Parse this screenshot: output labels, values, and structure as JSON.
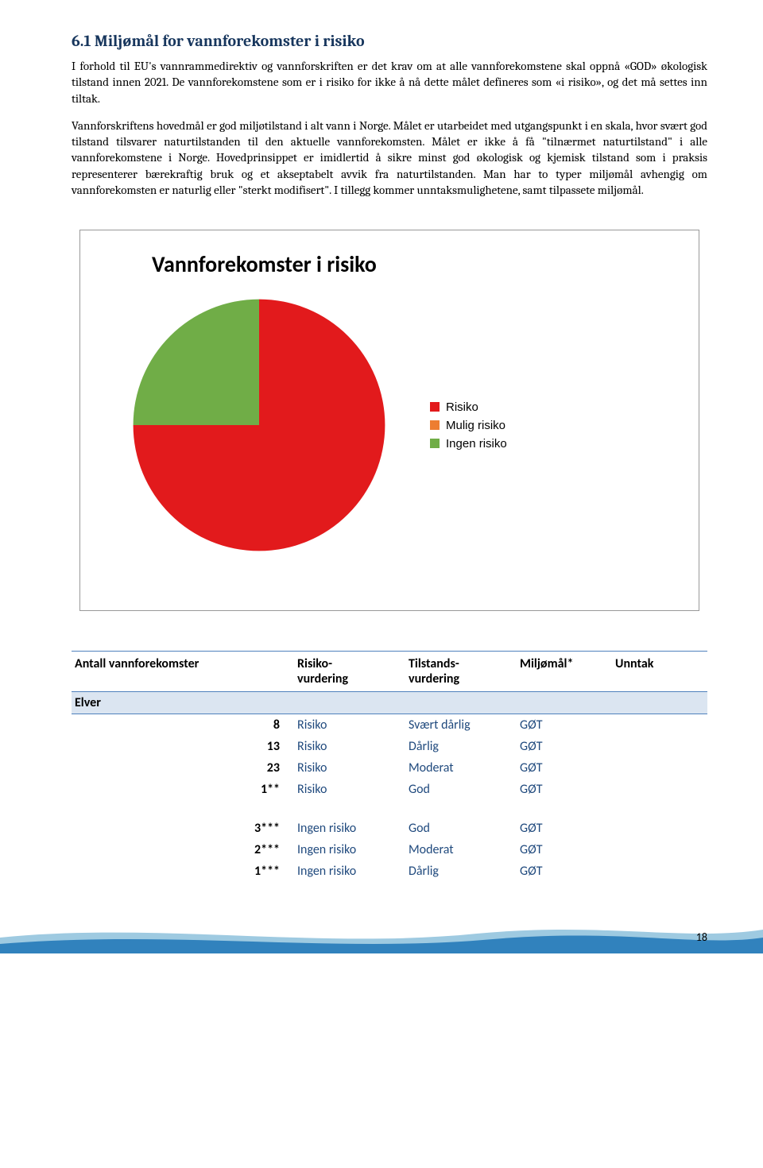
{
  "heading": "6.1  Miljømål for vannforekomster i risiko",
  "para1": "I forhold til EU's vannrammedirektiv og vannforskriften er det krav om at alle vannforekomstene skal oppnå «GOD» økologisk tilstand innen 2021. De vannforekomstene som er i risiko for ikke å nå dette målet defineres som «i risiko», og det må settes inn tiltak.",
  "para2": "Vannforskriftens hovedmål er god miljøtilstand i alt vann i Norge. Målet er utarbeidet med utgangspunkt i en skala, hvor svært god tilstand tilsvarer naturtilstanden til den aktuelle vannforekomsten. Målet er ikke å få \"tilnærmet naturtilstand\" i alle vannforekomstene i Norge. Hovedprinsippet er imidlertid å sikre minst god økologisk og kjemisk tilstand som i praksis representerer bærekraftig bruk og et akseptabelt avvik fra naturtilstanden. Man har to typer miljømål avhengig om vannforekomsten er naturlig eller \"sterkt modifisert\". I tillegg kommer unntaksmulighetene, samt tilpassete miljømål.",
  "chart": {
    "title": "Vannforekomster i risiko",
    "type": "pie",
    "slices": [
      {
        "label": "Risiko",
        "value": 75,
        "color": "#e21a1c"
      },
      {
        "label": "Mulig risiko",
        "value": 0,
        "color": "#ed7d31"
      },
      {
        "label": "Ingen risiko",
        "value": 25,
        "color": "#70ad47"
      }
    ],
    "background_color": "#ffffff",
    "border_color": "#999999",
    "title_fontsize": 28,
    "legend_fontsize": 15
  },
  "table": {
    "headers": [
      "Antall vannforekomster",
      "Risiko-\nvurdering",
      "Tilstands-\nvurdering",
      "Miljømål*",
      "Unntak"
    ],
    "section": "Elver",
    "group1": [
      {
        "n": "8",
        "risk": "Risiko",
        "state": "Svært dårlig",
        "goal": "GØT",
        "ex": ""
      },
      {
        "n": "13",
        "risk": "Risiko",
        "state": "Dårlig",
        "goal": "GØT",
        "ex": ""
      },
      {
        "n": "23",
        "risk": "Risiko",
        "state": "Moderat",
        "goal": "GØT",
        "ex": ""
      },
      {
        "n": "1**",
        "risk": "Risiko",
        "state": "God",
        "goal": "GØT",
        "ex": ""
      }
    ],
    "group2": [
      {
        "n": "3***",
        "risk": "Ingen risiko",
        "state": "God",
        "goal": "GØT",
        "ex": ""
      },
      {
        "n": "2***",
        "risk": "Ingen risiko",
        "state": "Moderat",
        "goal": "GØT",
        "ex": ""
      },
      {
        "n": "1***",
        "risk": "Ingen risiko",
        "state": "Dårlig",
        "goal": "GØT",
        "ex": ""
      }
    ],
    "row_link_color": "#1f497d"
  },
  "page_number": "18",
  "wave_colors": {
    "top": "#9ecae1",
    "bottom": "#3182bd"
  }
}
